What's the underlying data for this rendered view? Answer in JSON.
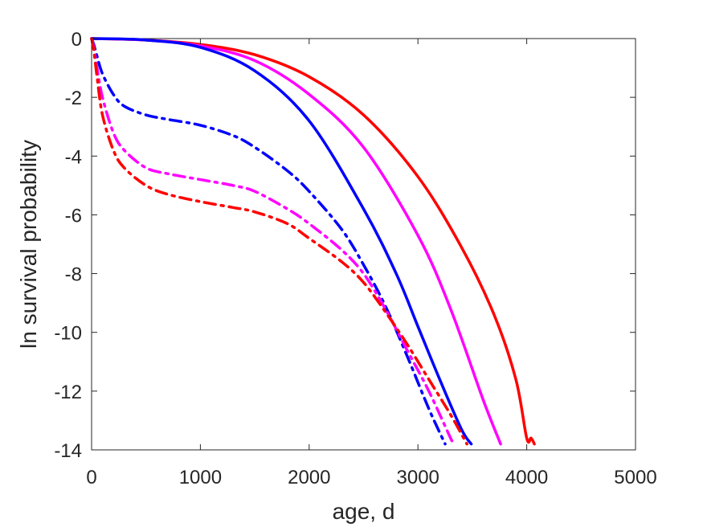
{
  "chart_data": {
    "type": "line",
    "title": "",
    "xlabel": "age, d",
    "ylabel": "ln survival probability",
    "xlim": [
      0,
      5000
    ],
    "ylim": [
      -14,
      0
    ],
    "xticks": [
      0,
      1000,
      2000,
      3000,
      4000,
      5000
    ],
    "yticks": [
      0,
      -2,
      -4,
      -6,
      -8,
      -10,
      -12,
      -14
    ],
    "xtick_labels": [
      "0",
      "1000",
      "2000",
      "3000",
      "4000",
      "5000"
    ],
    "ytick_labels": [
      "0",
      "-2",
      "-4",
      "-6",
      "-8",
      "-10",
      "-12",
      "-14"
    ],
    "grid": false,
    "legend": "none",
    "series": [
      {
        "color": "#ff0000",
        "style": "solid",
        "x": [
          0,
          500,
          1000,
          1500,
          2000,
          2500,
          3000,
          3400,
          3700,
          3900,
          4000,
          4040,
          4070
        ],
        "y": [
          0,
          -0.05,
          -0.2,
          -0.55,
          -1.3,
          -2.6,
          -4.7,
          -7.1,
          -9.4,
          -11.6,
          -13.6,
          -13.6,
          -13.8
        ]
      },
      {
        "color": "#ff00ff",
        "style": "solid",
        "x": [
          0,
          500,
          1000,
          1500,
          2000,
          2500,
          3000,
          3300,
          3600,
          3760
        ],
        "y": [
          0,
          -0.05,
          -0.25,
          -0.75,
          -1.9,
          -3.7,
          -6.7,
          -9.2,
          -12.3,
          -13.8
        ]
      },
      {
        "color": "#0000ff",
        "style": "solid",
        "x": [
          0,
          500,
          1000,
          1500,
          2000,
          2500,
          2800,
          3000,
          3200,
          3400,
          3490
        ],
        "y": [
          0,
          -0.05,
          -0.3,
          -1.1,
          -2.8,
          -5.8,
          -8.0,
          -9.8,
          -11.6,
          -13.3,
          -13.8
        ]
      },
      {
        "color": "#0000ff",
        "style": "dashdot",
        "x": [
          0,
          20,
          50,
          100,
          200,
          300,
          500,
          700,
          1000,
          1300,
          1500,
          1800,
          2000,
          2300,
          2500,
          2700,
          2900,
          3100,
          3250
        ],
        "y": [
          0,
          -0.2,
          -0.6,
          -1.2,
          -1.9,
          -2.3,
          -2.6,
          -2.75,
          -2.95,
          -3.3,
          -3.7,
          -4.5,
          -5.2,
          -6.5,
          -7.7,
          -9.1,
          -10.8,
          -12.6,
          -13.8
        ]
      },
      {
        "color": "#ff00ff",
        "style": "dashdot",
        "x": [
          0,
          20,
          50,
          100,
          200,
          300,
          500,
          700,
          1000,
          1300,
          1500,
          1800,
          2000,
          2300,
          2500,
          2700,
          2900,
          3100,
          3300,
          3330
        ],
        "y": [
          0,
          -0.3,
          -1.0,
          -2.0,
          -3.2,
          -3.8,
          -4.4,
          -4.6,
          -4.8,
          -5.0,
          -5.2,
          -5.8,
          -6.3,
          -7.2,
          -8.0,
          -9.2,
          -10.6,
          -12.0,
          -13.6,
          -13.8
        ]
      },
      {
        "color": "#ff0000",
        "style": "dashdot",
        "x": [
          0,
          20,
          50,
          100,
          200,
          300,
          500,
          700,
          1000,
          1300,
          1500,
          1800,
          2000,
          2300,
          2500,
          2700,
          2900,
          3100,
          3300,
          3450
        ],
        "y": [
          0,
          -0.4,
          -1.3,
          -2.6,
          -3.8,
          -4.4,
          -5.0,
          -5.3,
          -5.55,
          -5.75,
          -5.9,
          -6.3,
          -6.8,
          -7.6,
          -8.3,
          -9.3,
          -10.4,
          -11.6,
          -12.8,
          -13.8
        ]
      }
    ]
  }
}
